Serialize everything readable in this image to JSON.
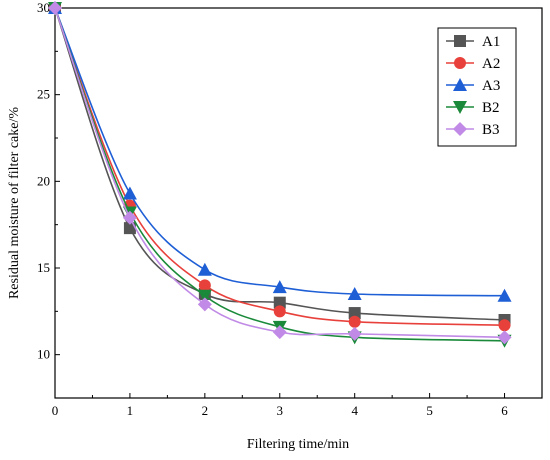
{
  "chart_data": {
    "type": "line",
    "xlabel": "Filtering time/min",
    "ylabel": "Residual moisture of filter cake/%",
    "xlim": [
      0,
      6.5
    ],
    "ylim": [
      7.5,
      30
    ],
    "x_ticks": [
      "0",
      "1",
      "2",
      "3",
      "4",
      "5",
      "6"
    ],
    "y_ticks": [
      "10",
      "15",
      "20",
      "25",
      "30"
    ],
    "grid": false,
    "legend_position": "top-right",
    "x": [
      0,
      1,
      2,
      3,
      4,
      6
    ],
    "series": [
      {
        "name": "A1",
        "color": "#555555",
        "marker": "square",
        "values": [
          30,
          17.3,
          13.5,
          13.0,
          12.4,
          12.0
        ]
      },
      {
        "name": "A2",
        "color": "#e8413c",
        "marker": "circle",
        "values": [
          30,
          18.6,
          14.0,
          12.5,
          11.9,
          11.7
        ]
      },
      {
        "name": "A3",
        "color": "#1f5fd6",
        "marker": "triangle-up",
        "values": [
          30,
          19.3,
          14.9,
          13.9,
          13.5,
          13.4
        ]
      },
      {
        "name": "B2",
        "color": "#1a8a3a",
        "marker": "triangle-down",
        "values": [
          30,
          18.2,
          13.4,
          11.6,
          11.0,
          10.8
        ]
      },
      {
        "name": "B3",
        "color": "#c08ae6",
        "marker": "diamond",
        "values": [
          30,
          17.9,
          12.9,
          11.3,
          11.2,
          11.0
        ]
      }
    ]
  }
}
